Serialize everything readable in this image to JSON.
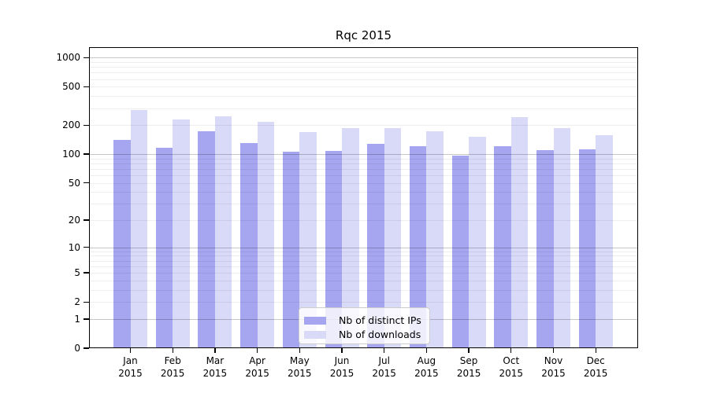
{
  "title": "Rqc 2015",
  "colors": {
    "distinct_ips": "#a5a5f0",
    "downloads": "#d9d9f8",
    "grid_major": "rgba(0,0,0,0.22)",
    "grid_minor": "rgba(0,0,0,0.065)",
    "axis": "#000000",
    "legend_border": "#cccccc"
  },
  "legend": {
    "position": "lower center"
  },
  "chart_data": {
    "type": "bar",
    "title": "Rqc 2015",
    "categories": [
      "Jan 2015",
      "Feb 2015",
      "Mar 2015",
      "Apr 2015",
      "May 2015",
      "Jun 2015",
      "Jul 2015",
      "Aug 2015",
      "Sep 2015",
      "Oct 2015",
      "Nov 2015",
      "Dec 2015"
    ],
    "series": [
      {
        "name": "Nb of distinct IPs",
        "color": "#a5a5f0",
        "values": [
          140,
          116,
          172,
          130,
          106,
          109,
          128,
          120,
          96,
          121,
          111,
          112
        ]
      },
      {
        "name": "Nb of downloads",
        "color": "#d9d9f8",
        "values": [
          288,
          230,
          246,
          217,
          170,
          185,
          187,
          172,
          151,
          242,
          186,
          156
        ]
      }
    ],
    "xlabel": "",
    "ylabel": "",
    "yscale": "log1p",
    "yticks": [
      0,
      1,
      2,
      5,
      10,
      20,
      50,
      100,
      200,
      500,
      1000
    ],
    "ylim": [
      0,
      1280
    ],
    "grid": "horizontal, major at powers of 10 with log minors",
    "legend_position": "lower center"
  }
}
